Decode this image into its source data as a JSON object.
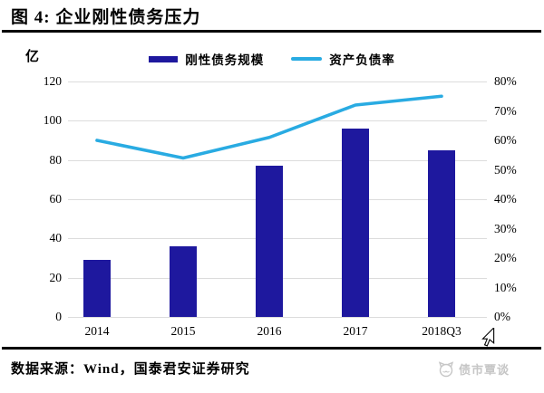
{
  "figure": {
    "title": "图 4: 企业刚性债务压力",
    "unit_label": "亿",
    "source": "数据来源：Wind，国泰君安证券研究",
    "watermark": "债市覃谈"
  },
  "legend": [
    {
      "label": "刚性债务规模",
      "marker": "bar-swatch",
      "color": "#1E189E"
    },
    {
      "label": "资产负债率",
      "marker": "line-swatch",
      "color": "#29ABE2"
    }
  ],
  "chart_data": {
    "type": "bar+line combo",
    "title": "企业刚性债务压力",
    "categories": [
      "2014",
      "2015",
      "2016",
      "2017",
      "2018Q3"
    ],
    "series": [
      {
        "name": "刚性债务规模",
        "type": "bar",
        "axis": "left",
        "color": "#1E189E",
        "values": [
          29,
          36,
          77,
          96,
          85
        ]
      },
      {
        "name": "资产负债率",
        "type": "line",
        "axis": "right",
        "color": "#29ABE2",
        "values": [
          60,
          54,
          61,
          72,
          75
        ]
      }
    ],
    "left_axis": {
      "label": "亿",
      "min": 0,
      "max": 120,
      "step": 20,
      "ticks": [
        "120",
        "100",
        "80",
        "60",
        "40",
        "20",
        "0"
      ]
    },
    "right_axis": {
      "label": "%",
      "min": 0,
      "max": 80,
      "step": 10,
      "ticks": [
        "80%",
        "70%",
        "60%",
        "50%",
        "40%",
        "30%",
        "20%",
        "10%",
        "0%"
      ]
    },
    "grid": true,
    "gridline_color": "#DCDCDC",
    "legend_position": "top"
  }
}
